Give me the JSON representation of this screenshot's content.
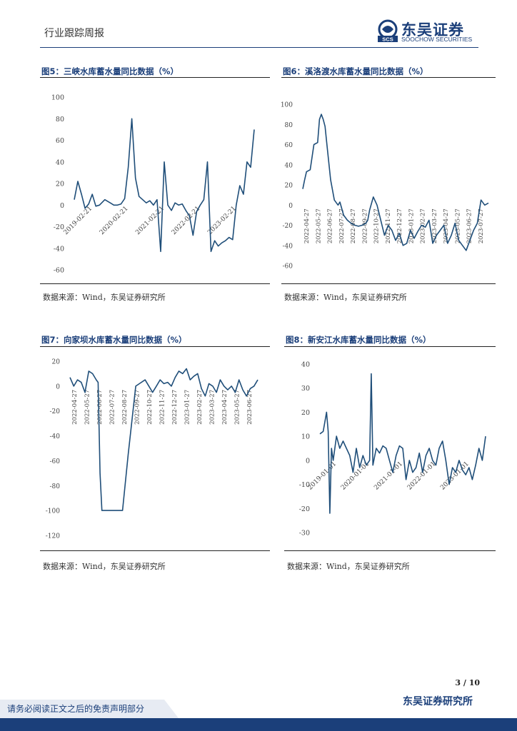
{
  "header": {
    "left_text": "行业跟踪周报",
    "logo_cn": "东吴证券",
    "logo_en": "SOOCHOW SECURITIES",
    "logo_mark": "SCS"
  },
  "figures": [
    {
      "title": "图5：三峡水库蓄水量同比数据（%）",
      "source": "数据来源：Wind，东吴证券研究所"
    },
    {
      "title": "图6：溪洛渡水库蓄水量同比数据（%）",
      "source": "数据来源：Wind，东吴证券研究所"
    },
    {
      "title": "图7：向家坝水库蓄水量同比数据（%）",
      "source": "数据来源：Wind，东吴证券研究所"
    },
    {
      "title": "图8：新安江水库蓄水量同比数据（%）",
      "source": "数据来源：Wind，东吴证券研究所"
    }
  ],
  "footer": {
    "page": "3 / 10",
    "institute": "东吴证券研究所",
    "disclaimer": "请务必阅读正文之后的免责声明部分"
  },
  "colors": {
    "line": "#1f4e79",
    "brand": "#1b3f7a"
  },
  "chart_data": [
    {
      "type": "line",
      "title": "三峡水库蓄水量同比数据（%）",
      "ylim": [
        -60,
        100
      ],
      "yticks": [
        -60,
        -40,
        -20,
        0,
        20,
        40,
        60,
        80,
        100
      ],
      "tick_labels": [
        "2019-02-21",
        "2020-02-21",
        "2021-02-21",
        "2022-02-21",
        "2023-02-21"
      ],
      "x": [
        0,
        2,
        4,
        6,
        8,
        10,
        12,
        14,
        17,
        20,
        22,
        24,
        26,
        28,
        30,
        32,
        34,
        36,
        38,
        40,
        42,
        44,
        46,
        48,
        50,
        52,
        54,
        56,
        58,
        60,
        62,
        64,
        66,
        68,
        70,
        72,
        74,
        76,
        78,
        80,
        82,
        84,
        86,
        88,
        90,
        92,
        94,
        96,
        98,
        100
      ],
      "values": [
        5,
        22,
        10,
        -3,
        1,
        10,
        -1,
        0,
        5,
        2,
        0,
        0,
        1,
        6,
        35,
        80,
        25,
        8,
        5,
        2,
        4,
        0,
        5,
        -43,
        40,
        0,
        -5,
        2,
        0,
        1,
        -5,
        -10,
        -28,
        -6,
        0,
        5,
        40,
        -43,
        -33,
        -38,
        -35,
        -33,
        -30,
        -32,
        0,
        18,
        10,
        40,
        35,
        70
      ]
    },
    {
      "type": "line",
      "title": "溪洛渡水库蓄水量同比数据（%）",
      "ylim": [
        -60,
        100
      ],
      "yticks": [
        -60,
        -40,
        -20,
        0,
        20,
        40,
        60,
        80,
        100
      ],
      "tick_labels": [
        "2022-04-27",
        "2022-05-27",
        "2022-06-27",
        "2022-07-27",
        "2022-08-27",
        "2022-09-27",
        "2022-10-27",
        "2022-11-27",
        "2022-12-27",
        "2023-01-27",
        "2023-02-27",
        "2023-03-27",
        "2023-04-27",
        "2023-05-27",
        "2023-06-27",
        "2023-07-27"
      ],
      "x": [
        0,
        1,
        2,
        4,
        6,
        8,
        9,
        10,
        11,
        12,
        13,
        15,
        17,
        19,
        20,
        22,
        24,
        26,
        28,
        30,
        32,
        34,
        35,
        36,
        38,
        40,
        42,
        44,
        46,
        48,
        50,
        52,
        54,
        56,
        58,
        60,
        62,
        64,
        66,
        68,
        70,
        72,
        74,
        76,
        78,
        80,
        82,
        84,
        86,
        88,
        90,
        92,
        94,
        96,
        98,
        100
      ],
      "values": [
        16,
        25,
        33,
        35,
        60,
        62,
        85,
        90,
        85,
        78,
        60,
        25,
        5,
        0,
        3,
        -10,
        -15,
        -18,
        -20,
        -21,
        -20,
        -18,
        -15,
        -5,
        8,
        0,
        -15,
        -30,
        -20,
        -25,
        -35,
        -28,
        -40,
        -38,
        -25,
        -33,
        -26,
        -20,
        -22,
        -15,
        -38,
        -30,
        -25,
        -20,
        -38,
        -30,
        -18,
        -35,
        -40,
        -45,
        -35,
        -25,
        -18,
        5,
        0,
        2
      ]
    },
    {
      "type": "line",
      "title": "向家坝水库蓄水量同比数据（%）",
      "ylim": [
        -120,
        20
      ],
      "yticks": [
        -120,
        -100,
        -80,
        -60,
        -40,
        -20,
        0,
        20
      ],
      "tick_labels": [
        "2022-04-27",
        "2022-05-27",
        "2022-06-27",
        "2022-07-27",
        "2022-08-27",
        "2022-09-27",
        "2022-10-27",
        "2022-11-27",
        "2022-12-27",
        "2023-01-27",
        "2023-02-27",
        "2023-03-27",
        "2023-04-27",
        "2023-05-27",
        "2023-06-27"
      ],
      "x": [
        0,
        2,
        4,
        6,
        8,
        10,
        12,
        14,
        15,
        16,
        17,
        18,
        23,
        28,
        31,
        35,
        38,
        40,
        42,
        44,
        46,
        48,
        50,
        52,
        54,
        56,
        58,
        60,
        62,
        64,
        66,
        68,
        70,
        72,
        74,
        76,
        78,
        80,
        82,
        84,
        86,
        88,
        90,
        92,
        94,
        96,
        98,
        100
      ],
      "values": [
        7,
        0,
        5,
        3,
        -5,
        12,
        10,
        5,
        3,
        -70,
        -100,
        -100,
        -100,
        -100,
        -55,
        0,
        3,
        5,
        0,
        -5,
        0,
        5,
        2,
        3,
        0,
        7,
        12,
        10,
        14,
        5,
        8,
        10,
        -2,
        -8,
        2,
        0,
        -5,
        5,
        0,
        -3,
        0,
        -5,
        5,
        -3,
        -8,
        -2,
        0,
        5
      ]
    },
    {
      "type": "line",
      "title": "新安江水库蓄水量同比数据（%）",
      "ylim": [
        -30,
        40
      ],
      "yticks": [
        -30,
        -20,
        -10,
        0,
        10,
        20,
        30,
        40
      ],
      "tick_labels": [
        "2019-01-01",
        "2020-01-01",
        "2021-01-01",
        "2022-01-01",
        "2023-01-01"
      ],
      "x": [
        0,
        2,
        4,
        5,
        6,
        7,
        8,
        10,
        12,
        14,
        16,
        18,
        20,
        22,
        24,
        26,
        28,
        30,
        31,
        32,
        34,
        36,
        38,
        40,
        42,
        44,
        46,
        48,
        50,
        52,
        54,
        56,
        58,
        60,
        62,
        64,
        66,
        68,
        70,
        72,
        74,
        76,
        78,
        80,
        82,
        84,
        86,
        88,
        90,
        92,
        94,
        96,
        98,
        100
      ],
      "values": [
        11,
        12,
        20,
        12,
        -22,
        5,
        0,
        10,
        5,
        8,
        5,
        2,
        -5,
        5,
        -3,
        2,
        -2,
        0,
        36,
        -2,
        5,
        3,
        6,
        5,
        0,
        -5,
        2,
        6,
        5,
        -8,
        0,
        -5,
        -3,
        3,
        -5,
        2,
        5,
        0,
        -2,
        5,
        8,
        0,
        -10,
        -3,
        -5,
        0,
        -4,
        -6,
        -3,
        -8,
        -2,
        5,
        0,
        10
      ]
    }
  ]
}
